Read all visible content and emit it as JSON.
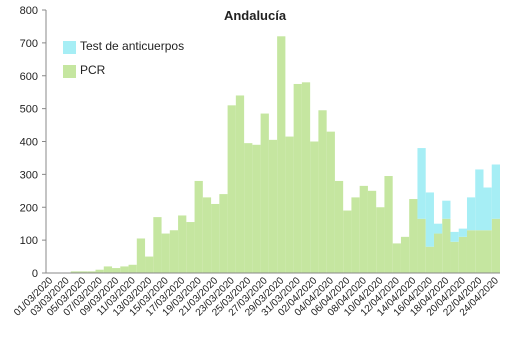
{
  "chart_data": {
    "type": "stacked-bar",
    "title": "Andalucía",
    "categories": [
      "01/03/2020",
      null,
      "03/03/2020",
      null,
      "05/03/2020",
      null,
      "07/03/2020",
      null,
      "09/03/2020",
      null,
      "11/03/2020",
      null,
      "13/03/2020",
      null,
      "15/03/2020",
      null,
      "17/03/2020",
      null,
      "19/03/2020",
      null,
      "21/03/2020",
      null,
      "23/03/2020",
      null,
      "25/03/2020",
      null,
      "27/03/2020",
      null,
      "29/03/2020",
      null,
      "31/03/2020",
      null,
      "02/04/2020",
      null,
      "04/04/2020",
      null,
      "06/04/2020",
      null,
      "08/04/2020",
      null,
      "10/04/2020",
      null,
      "12/04/2020",
      null,
      "14/04/2020",
      null,
      "16/04/2020",
      null,
      "18/04/2020",
      null,
      "20/04/2020",
      null,
      "22/04/2020",
      null,
      "24/04/2020"
    ],
    "series": [
      {
        "name": "PCR",
        "color": "#c5e6a0",
        "values": [
          0,
          0,
          0,
          5,
          5,
          5,
          10,
          20,
          15,
          20,
          25,
          105,
          50,
          170,
          120,
          130,
          175,
          155,
          280,
          230,
          210,
          240,
          510,
          540,
          395,
          390,
          485,
          405,
          720,
          415,
          575,
          580,
          400,
          495,
          430,
          280,
          190,
          230,
          265,
          250,
          200,
          295,
          90,
          110,
          225,
          165,
          80,
          120,
          165,
          95,
          110,
          130,
          130,
          130,
          165
        ]
      },
      {
        "name": "Test de anticuerpos",
        "color": "#a6eef5",
        "values": [
          0,
          0,
          0,
          0,
          0,
          0,
          0,
          0,
          0,
          0,
          0,
          0,
          0,
          0,
          0,
          0,
          0,
          0,
          0,
          0,
          0,
          0,
          0,
          0,
          0,
          0,
          0,
          0,
          0,
          0,
          0,
          0,
          0,
          0,
          0,
          0,
          0,
          0,
          0,
          0,
          0,
          0,
          0,
          0,
          0,
          215,
          165,
          30,
          55,
          30,
          25,
          100,
          185,
          130,
          165
        ]
      }
    ],
    "ylim": [
      0,
      800
    ],
    "yticks": [
      0,
      100,
      200,
      300,
      400,
      500,
      600,
      700,
      800
    ]
  }
}
